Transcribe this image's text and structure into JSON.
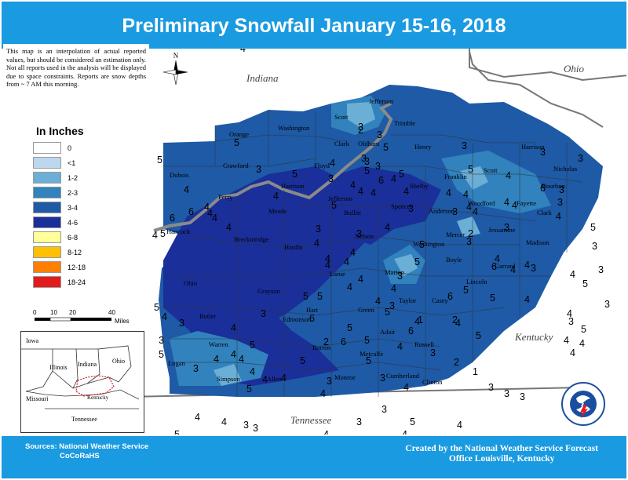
{
  "title": "Preliminary Snowfall January 15-16, 2018",
  "note": "This map is an interpolation of actual reported values, but should be considered an estimation only. Not all reports used in the analysis will be displayed due to space constraints. Reports are snow depths from ~ 7 AM this morning.",
  "legend": {
    "title": "In Inches",
    "items": [
      {
        "label": "0",
        "color": "#ffffff"
      },
      {
        "label": "<1",
        "color": "#bdd7ee"
      },
      {
        "label": "1-2",
        "color": "#6baed6"
      },
      {
        "label": "2-3",
        "color": "#3182bd"
      },
      {
        "label": "3-4",
        "color": "#1e5aa6"
      },
      {
        "label": "4-6",
        "color": "#1a2f9a"
      },
      {
        "label": "6-8",
        "color": "#ffff99"
      },
      {
        "label": "8-12",
        "color": "#ffc000"
      },
      {
        "label": "12-18",
        "color": "#ff7f00"
      },
      {
        "label": "18-24",
        "color": "#e31a1c"
      }
    ]
  },
  "scale": {
    "ticks": [
      "0",
      "10",
      "20",
      "40"
    ],
    "unit": "Miles"
  },
  "north_label": "N",
  "states": {
    "indiana": "Indiana",
    "ohio": "Ohio",
    "kentucky": "Kentucky",
    "tennessee": "Tennessee"
  },
  "inset": {
    "iowa": "Iowa",
    "illinois": "Illinois",
    "indiana": "Indiana",
    "ohio": "Ohio",
    "missouri": "Missouri",
    "kentucky": "Kentucky",
    "tennessee": "Tennessee"
  },
  "counties": [
    "Jefferson",
    "Scott",
    "Trimble",
    "Washington",
    "Clark",
    "Oldham",
    "Henry",
    "Orange",
    "Crawford",
    "Floyd",
    "Harrison",
    "Harrison",
    "Nicholas",
    "Dubois",
    "Franklin",
    "Scott",
    "Bourbon",
    "Perry",
    "Jefferson",
    "Shelby",
    "Woodford",
    "Fayette",
    "Clark",
    "Meade",
    "Bullitt",
    "Spencer",
    "Anderson",
    "Hancock",
    "Breckinridge",
    "Nelson",
    "Mercer",
    "Jessamine",
    "Madison",
    "Hardin",
    "Washington",
    "Boyle",
    "Garrard",
    "Ohio",
    "Larue",
    "Marion",
    "Lincoln",
    "Grayson",
    "Taylor",
    "Casey",
    "Butler",
    "Hart",
    "Edmonson",
    "Green",
    "Adair",
    "Russell",
    "Warren",
    "Barren",
    "Metcalfe",
    "Logan",
    "Simpson",
    "Allen",
    "Monroe",
    "Cumberland",
    "Clinton"
  ],
  "amounts": [
    "4",
    "3",
    "2",
    "3",
    "3",
    "5",
    "3",
    "3",
    "5",
    "6",
    "5",
    "5",
    "3",
    "5",
    "3",
    "3",
    "3",
    "4",
    "4",
    "3",
    "4",
    "4",
    "5",
    "4",
    "4",
    "5",
    "4",
    "4",
    "4",
    "5",
    "6",
    "4",
    "4",
    "3",
    "3",
    "4",
    "4",
    "4",
    "3",
    "3",
    "4",
    "5",
    "2",
    "3",
    "3",
    "3",
    "6",
    "6",
    "4",
    "4",
    "4",
    "4",
    "5",
    "4",
    "4",
    "3",
    "4",
    "3",
    "4",
    "5",
    "4",
    "4",
    "4",
    "4",
    "4",
    "4",
    "3",
    "4",
    "5",
    "6",
    "5",
    "6",
    "3",
    "4",
    "4",
    "4",
    "4",
    "4",
    "5",
    "4",
    "4",
    "3",
    "5",
    "4",
    "6",
    "5",
    "5",
    "2",
    "6",
    "5",
    "4",
    "5",
    "4",
    "4",
    "4",
    "4",
    "3",
    "4",
    "4",
    "5",
    "4",
    "4",
    "4",
    "3",
    "6",
    "5",
    "5",
    "4",
    "4",
    "3",
    "3",
    "3",
    "5",
    "3",
    "4",
    "3",
    "3",
    "5",
    "4",
    "4",
    "3",
    "3",
    "5",
    "4",
    "4",
    "4",
    "3",
    "5",
    "4",
    "5",
    "3",
    "4",
    "5",
    "3",
    "3",
    "1",
    "2",
    "5",
    "3",
    "2",
    "1",
    "3",
    "3",
    "3",
    "5",
    "3",
    "2",
    "3",
    "4",
    "5",
    "4",
    "5",
    "4",
    "5",
    "3",
    "5",
    "4",
    "5",
    "3"
  ],
  "sources": [
    "Sources:  National Weather Service",
    "CoCoRaHS"
  ],
  "credit": [
    "Created by the National Weather Service Forecast",
    "Office Louisville, Kentucky"
  ],
  "logo_text": "NATIONAL WEATHER SERVICE"
}
